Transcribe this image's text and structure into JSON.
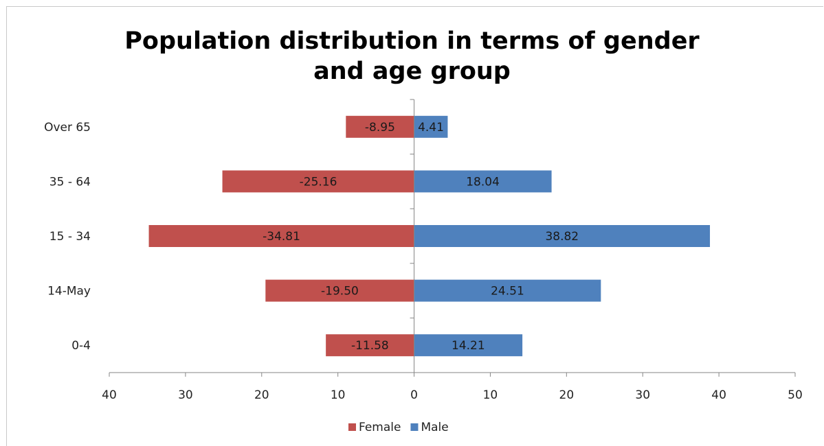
{
  "chart_data": {
    "type": "bar",
    "orientation": "horizontal",
    "title": "Population distribution in terms of gender and age group",
    "categories": [
      "Over 65",
      "35 - 64",
      "15 - 34",
      "14-May",
      "0-4"
    ],
    "series": [
      {
        "name": "Female",
        "color": "#C0504D",
        "values": [
          -8.95,
          -25.16,
          -34.81,
          -19.5,
          -11.58
        ],
        "labels": [
          "-8.95",
          "-25.16",
          "-34.81",
          "-19.50",
          "-11.58"
        ]
      },
      {
        "name": "Male",
        "color": "#4F81BD",
        "values": [
          4.41,
          18.04,
          38.82,
          24.51,
          14.21
        ],
        "labels": [
          "4.41",
          "18.04",
          "38.82",
          "24.51",
          "14.21"
        ]
      }
    ],
    "xlim": [
      -40,
      50
    ],
    "xticks": [
      -40,
      -30,
      -20,
      -10,
      0,
      10,
      20,
      30,
      40,
      50
    ],
    "xtick_labels": [
      "40",
      "30",
      "20",
      "10",
      "0",
      "10",
      "20",
      "30",
      "40",
      "50"
    ],
    "grid": false,
    "legend_position": "bottom",
    "bar_overlap": "stacked on shared zero axis"
  }
}
